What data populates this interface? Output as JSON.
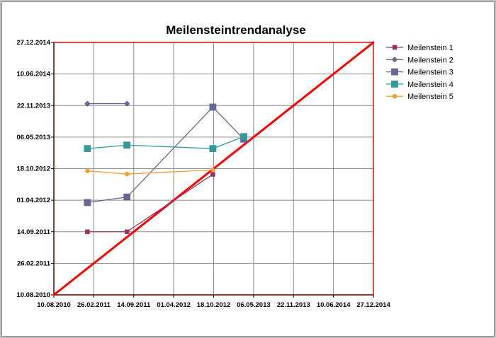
{
  "chart_data": {
    "type": "line",
    "title": "Meilensteintrendanalyse",
    "xlabel": "",
    "ylabel": "",
    "x_ticks": [
      "10.08.2010",
      "26.02.2011",
      "14.09.2011",
      "01.04.2012",
      "18.10.2012",
      "06.05.2013",
      "22.11.2013",
      "10.06.2014",
      "27.12.2014"
    ],
    "y_ticks": [
      "10.08.2010",
      "26.02.2011",
      "14.09.2011",
      "01.04.2012",
      "18.10.2012",
      "06.05.2013",
      "22.11.2013",
      "10.06.2014",
      "27.12.2014"
    ],
    "xlim": [
      "10.08.2010",
      "27.12.2014"
    ],
    "ylim": [
      "10.08.2010",
      "27.12.2014"
    ],
    "grid": true,
    "legend_position": "right",
    "diagonal": {
      "from": [
        "10.08.2010",
        "10.08.2010"
      ],
      "to": [
        "27.12.2014",
        "27.12.2014"
      ],
      "color": "#ff0000"
    },
    "series": [
      {
        "name": "Meilenstein 1",
        "color": "#993366",
        "marker": "square",
        "x": [
          "25.01.2011",
          "11.08.2011",
          "14.10.2012"
        ],
        "y": [
          "14.09.2011",
          "14.09.2011",
          "12.09.2012"
        ]
      },
      {
        "name": "Meilenstein 2",
        "color": "#666699",
        "marker": "diamond",
        "x": [
          "25.01.2011",
          "11.08.2011"
        ],
        "y": [
          "04.12.2013",
          "04.12.2013"
        ]
      },
      {
        "name": "Meilenstein 3",
        "color": "#666699",
        "marker": "square-large",
        "x": [
          "25.01.2011",
          "11.08.2011",
          "14.10.2012",
          "18.03.2013"
        ],
        "y": [
          "17.03.2012",
          "21.04.2012",
          "12.11.2013",
          "23.04.2013"
        ]
      },
      {
        "name": "Meilenstein 4",
        "color": "#339999",
        "marker": "square-large",
        "x": [
          "25.01.2011",
          "11.08.2011",
          "14.10.2012",
          "18.03.2013"
        ],
        "y": [
          "22.02.2013",
          "16.03.2013",
          "22.02.2013",
          "09.05.2013"
        ]
      },
      {
        "name": "Meilenstein 5",
        "color": "#ff9933",
        "marker": "circle",
        "x": [
          "25.01.2011",
          "11.08.2011",
          "14.10.2012"
        ],
        "y": [
          "04.10.2012",
          "14.09.2012",
          "10.10.2012"
        ]
      }
    ]
  }
}
